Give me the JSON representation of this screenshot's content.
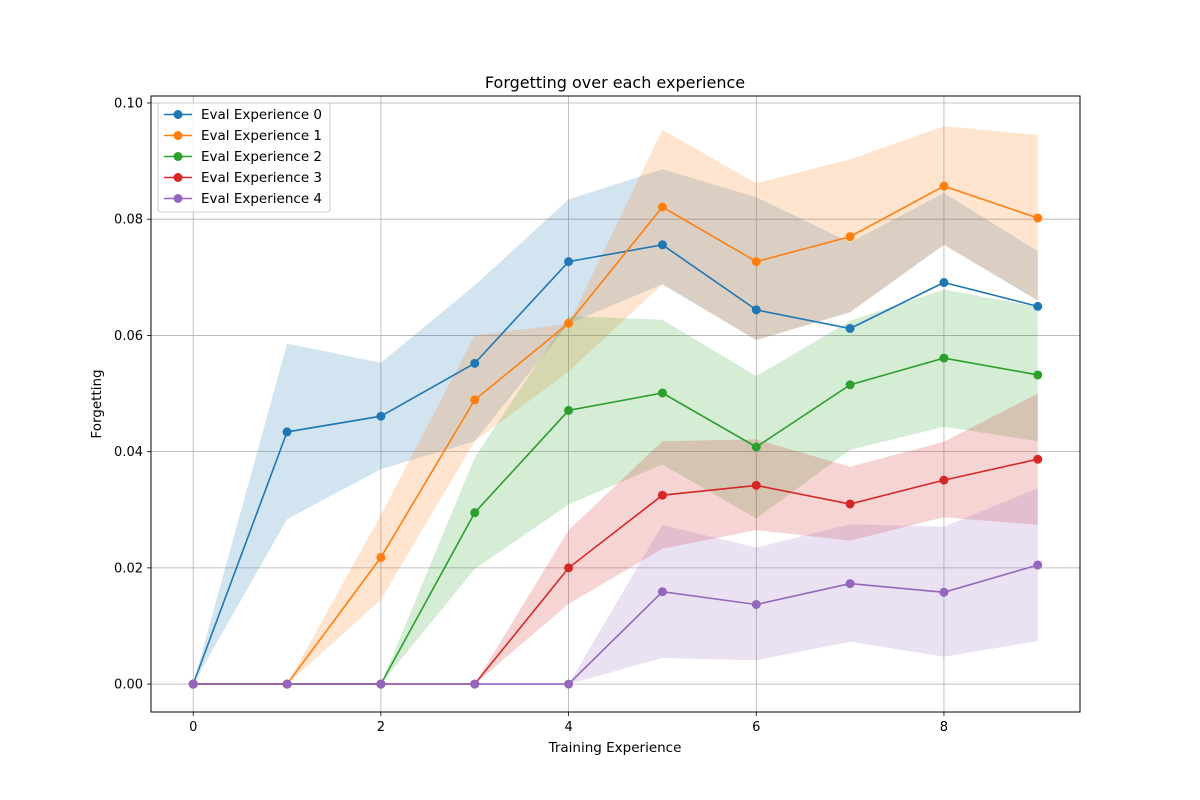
{
  "chart_data": {
    "type": "line",
    "title": "Forgetting over each experience",
    "xlabel": "Training Experience",
    "ylabel": "Forgetting",
    "xlim": [
      -0.45,
      9.45
    ],
    "ylim": [
      -0.0048,
      0.1012
    ],
    "x_ticks": [
      "0",
      "2",
      "4",
      "6",
      "8"
    ],
    "y_ticks": [
      "0.00",
      "0.02",
      "0.04",
      "0.06",
      "0.08",
      "0.10"
    ],
    "grid": true,
    "legend_position": "top-left",
    "x": [
      0,
      1,
      2,
      3,
      4,
      5,
      6,
      7,
      8,
      9
    ],
    "series": [
      {
        "name": "Eval Experience 0",
        "color": "#1f77b4",
        "values": [
          0.0,
          0.0434,
          0.0461,
          0.0552,
          0.0727,
          0.0756,
          0.0644,
          0.0612,
          0.0691,
          0.065
        ],
        "lower": [
          0.0,
          0.0284,
          0.037,
          0.0418,
          0.062,
          0.0688,
          0.0592,
          0.064,
          0.0756,
          0.066
        ],
        "upper": [
          0.0,
          0.0586,
          0.0553,
          0.0686,
          0.0834,
          0.0886,
          0.0838,
          0.076,
          0.0845,
          0.0745
        ]
      },
      {
        "name": "Eval Experience 1",
        "color": "#ff7f0e",
        "values": [
          0.0,
          0.0,
          0.0218,
          0.0489,
          0.0621,
          0.0821,
          0.0727,
          0.077,
          0.0857,
          0.0802
        ],
        "lower": [
          0.0,
          0.0,
          0.0145,
          0.0418,
          0.0538,
          0.0688,
          0.0592,
          0.064,
          0.0756,
          0.066
        ],
        "upper": [
          0.0,
          0.0,
          0.0291,
          0.06,
          0.062,
          0.0954,
          0.0862,
          0.0903,
          0.096,
          0.0945
        ]
      },
      {
        "name": "Eval Experience 2",
        "color": "#2ca02c",
        "values": [
          0.0,
          0.0,
          0.0,
          0.0295,
          0.0471,
          0.0501,
          0.0408,
          0.0515,
          0.0561,
          0.0532
        ],
        "lower": [
          0.0,
          0.0,
          0.0,
          0.0198,
          0.0309,
          0.0378,
          0.0285,
          0.0403,
          0.0443,
          0.0418
        ],
        "upper": [
          0.0,
          0.0,
          0.0,
          0.039,
          0.0633,
          0.0627,
          0.053,
          0.0625,
          0.0679,
          0.0649
        ]
      },
      {
        "name": "Eval Experience 3",
        "color": "#d62728",
        "values": [
          0.0,
          0.0,
          0.0,
          0.0,
          0.02,
          0.0325,
          0.0342,
          0.031,
          0.0351,
          0.0387
        ],
        "lower": [
          0.0,
          0.0,
          0.0,
          0.0,
          0.0138,
          0.0233,
          0.0265,
          0.0247,
          0.0287,
          0.0274
        ],
        "upper": [
          0.0,
          0.0,
          0.0,
          0.0,
          0.0265,
          0.0418,
          0.0421,
          0.0374,
          0.0417,
          0.05
        ]
      },
      {
        "name": "Eval Experience 4",
        "color": "#9467bd",
        "values": [
          0.0,
          0.0,
          0.0,
          0.0,
          0.0,
          0.0159,
          0.0137,
          0.0173,
          0.0158,
          0.0205
        ],
        "lower": [
          0.0,
          0.0,
          0.0,
          0.0,
          0.0,
          0.0045,
          0.0041,
          0.0073,
          0.0047,
          0.0074
        ],
        "upper": [
          0.0,
          0.0,
          0.0,
          0.0,
          0.0,
          0.0274,
          0.0235,
          0.0275,
          0.0271,
          0.0337
        ]
      }
    ]
  }
}
